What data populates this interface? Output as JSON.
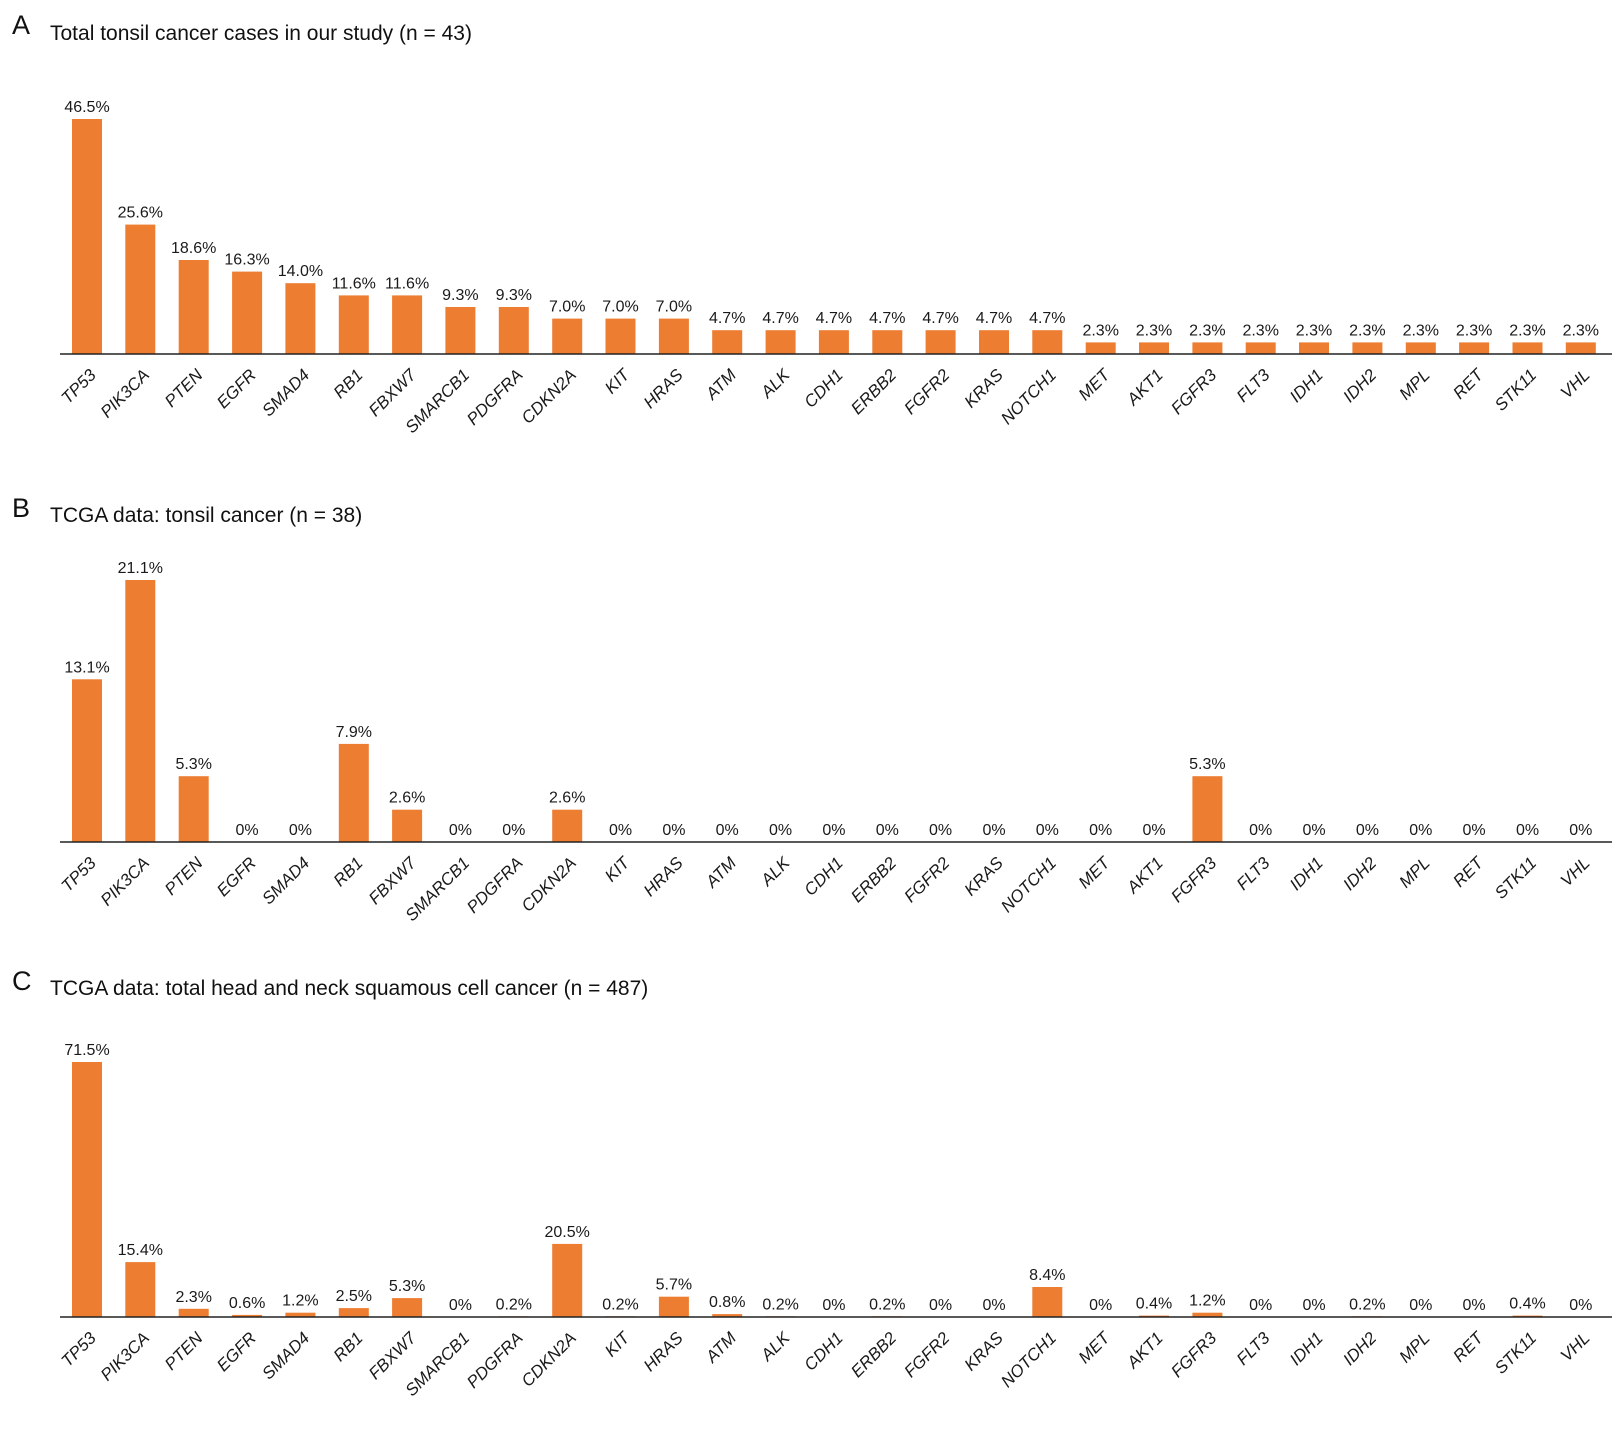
{
  "bar_color": "#ED7D31",
  "axis_color": "#222222",
  "chart_data": [
    {
      "type": "bar",
      "panel": "A",
      "title": "Total tonsil cancer cases in our study (n = 43)",
      "xlabel": "",
      "ylabel": "",
      "categories": [
        "TP53",
        "PIK3CA",
        "PTEN",
        "EGFR",
        "SMAD4",
        "RB1",
        "FBXW7",
        "SMARCB1",
        "PDGFRA",
        "CDKN2A",
        "KIT",
        "HRAS",
        "ATM",
        "ALK",
        "CDH1",
        "ERBB2",
        "FGFR2",
        "KRAS",
        "NOTCH1",
        "MET",
        "AKT1",
        "FGFR3",
        "FLT3",
        "IDH1",
        "IDH2",
        "MPL",
        "RET",
        "STK11",
        "VHL"
      ],
      "values": [
        46.5,
        25.6,
        18.6,
        16.3,
        14.0,
        11.6,
        11.6,
        9.3,
        9.3,
        7.0,
        7.0,
        7.0,
        4.7,
        4.7,
        4.7,
        4.7,
        4.7,
        4.7,
        4.7,
        2.3,
        2.3,
        2.3,
        2.3,
        2.3,
        2.3,
        2.3,
        2.3,
        2.3,
        2.3
      ],
      "labels": [
        "46.5%",
        "25.6%",
        "18.6%",
        "16.3%",
        "14.0%",
        "11.6%",
        "11.6%",
        "9.3%",
        "9.3%",
        "7.0%",
        "7.0%",
        "7.0%",
        "4.7%",
        "4.7%",
        "4.7%",
        "4.7%",
        "4.7%",
        "4.7%",
        "4.7%",
        "2.3%",
        "2.3%",
        "2.3%",
        "2.3%",
        "2.3%",
        "2.3%",
        "2.3%",
        "2.3%",
        "2.3%",
        "2.3%"
      ],
      "ylim": [
        0,
        46.5
      ]
    },
    {
      "type": "bar",
      "panel": "B",
      "title": "TCGA data: tonsil cancer (n = 38)",
      "xlabel": "",
      "ylabel": "",
      "categories": [
        "TP53",
        "PIK3CA",
        "PTEN",
        "EGFR",
        "SMAD4",
        "RB1",
        "FBXW7",
        "SMARCB1",
        "PDGFRA",
        "CDKN2A",
        "KIT",
        "HRAS",
        "ATM",
        "ALK",
        "CDH1",
        "ERBB2",
        "FGFR2",
        "KRAS",
        "NOTCH1",
        "MET",
        "AKT1",
        "FGFR3",
        "FLT3",
        "IDH1",
        "IDH2",
        "MPL",
        "RET",
        "STK11",
        "VHL"
      ],
      "values": [
        13.1,
        21.1,
        5.3,
        0,
        0,
        7.9,
        2.6,
        0,
        0,
        2.6,
        0,
        0,
        0,
        0,
        0,
        0,
        0,
        0,
        0,
        0,
        0,
        5.3,
        0,
        0,
        0,
        0,
        0,
        0,
        0
      ],
      "labels": [
        "13.1%",
        "21.1%",
        "5.3%",
        "0%",
        "0%",
        "7.9%",
        "2.6%",
        "0%",
        "0%",
        "2.6%",
        "0%",
        "0%",
        "0%",
        "0%",
        "0%",
        "0%",
        "0%",
        "0%",
        "0%",
        "0%",
        "0%",
        "5.3%",
        "0%",
        "0%",
        "0%",
        "0%",
        "0%",
        "0%",
        "0%"
      ],
      "ylim": [
        0,
        21.1
      ]
    },
    {
      "type": "bar",
      "panel": "C",
      "title": "TCGA data: total head and neck squamous cell cancer (n = 487)",
      "xlabel": "",
      "ylabel": "",
      "categories": [
        "TP53",
        "PIK3CA",
        "PTEN",
        "EGFR",
        "SMAD4",
        "RB1",
        "FBXW7",
        "SMARCB1",
        "PDGFRA",
        "CDKN2A",
        "KIT",
        "HRAS",
        "ATM",
        "ALK",
        "CDH1",
        "ERBB2",
        "FGFR2",
        "KRAS",
        "NOTCH1",
        "MET",
        "AKT1",
        "FGFR3",
        "FLT3",
        "IDH1",
        "IDH2",
        "MPL",
        "RET",
        "STK11",
        "VHL"
      ],
      "values": [
        71.5,
        15.4,
        2.3,
        0.6,
        1.2,
        2.5,
        5.3,
        0,
        0.2,
        20.5,
        0.2,
        5.7,
        0.8,
        0.2,
        0,
        0.2,
        0,
        0,
        8.4,
        0,
        0.4,
        1.2,
        0,
        0,
        0.2,
        0,
        0,
        0.4,
        0
      ],
      "labels": [
        "71.5%",
        "15.4%",
        "2.3%",
        "0.6%",
        "1.2%",
        "2.5%",
        "5.3%",
        "0%",
        "0.2%",
        "20.5%",
        "0.2%",
        "5.7%",
        "0.8%",
        "0.2%",
        "0%",
        "0.2%",
        "0%",
        "0%",
        "8.4%",
        "0%",
        "0.4%",
        "1.2%",
        "0%",
        "0%",
        "0.2%",
        "0%",
        "0%",
        "0.4%",
        "0%"
      ],
      "ylim": [
        0,
        71.5
      ]
    }
  ]
}
